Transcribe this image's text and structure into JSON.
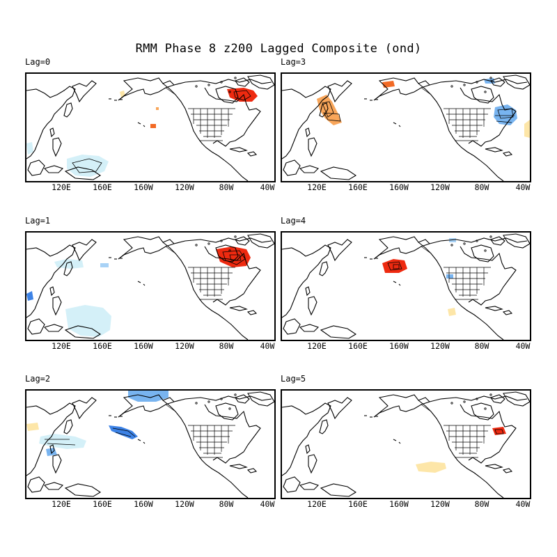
{
  "figure": {
    "title": "RMM Phase 8 z200 Lagged Composite (ond)",
    "x_tick_labels": [
      "120E",
      "160E",
      "160W",
      "120W",
      "80W",
      "40W"
    ],
    "colors": {
      "strong_positive": "#ee2a10",
      "moderate_positive": "#f26a25",
      "weak_positive": "#f9a65a",
      "faint_positive": "#fde6a8",
      "strong_negative": "#3c82e6",
      "moderate_negative": "#78b4f0",
      "weak_negative": "#a8d2f6",
      "faint_negative": "#d4f0f8",
      "coast": "#000000",
      "contour": "#000000"
    }
  },
  "panels": [
    {
      "label": "Lag=0",
      "anomalies": [
        {
          "sign": "positive",
          "intensity": "strong",
          "region": "Hudson Bay / Quebec"
        },
        {
          "sign": "positive",
          "intensity": "moderate",
          "region": "Central North Pacific (small)"
        },
        {
          "sign": "positive",
          "intensity": "faint",
          "region": "Bering Sea (small)"
        },
        {
          "sign": "negative",
          "intensity": "faint",
          "region": "Western tropical Pacific"
        },
        {
          "sign": "negative",
          "intensity": "faint",
          "region": "Philippines"
        }
      ]
    },
    {
      "label": "Lag=3",
      "anomalies": [
        {
          "sign": "positive",
          "intensity": "weak",
          "region": "Sea of Okhotsk / NE Asia"
        },
        {
          "sign": "positive",
          "intensity": "moderate",
          "region": "Alaska north coast (small)"
        },
        {
          "sign": "negative",
          "intensity": "strong",
          "region": "Canadian Arctic (small)"
        },
        {
          "sign": "negative",
          "intensity": "strong",
          "region": "Western North Atlantic"
        },
        {
          "sign": "positive",
          "intensity": "faint",
          "region": "Central Atlantic (edge)"
        }
      ]
    },
    {
      "label": "Lag=1",
      "anomalies": [
        {
          "sign": "positive",
          "intensity": "strong",
          "region": "Hudson Bay / Quebec"
        },
        {
          "sign": "negative",
          "intensity": "faint",
          "region": "Japan"
        },
        {
          "sign": "negative",
          "intensity": "faint",
          "region": "Western tropical Pacific"
        },
        {
          "sign": "negative",
          "intensity": "moderate",
          "region": "South China Sea (small)"
        }
      ]
    },
    {
      "label": "Lag=4",
      "anomalies": [
        {
          "sign": "positive",
          "intensity": "strong",
          "region": "Gulf of Alaska"
        },
        {
          "sign": "negative",
          "intensity": "moderate",
          "region": "Great Lakes (small)"
        },
        {
          "sign": "positive",
          "intensity": "faint",
          "region": "Mexico (small)"
        }
      ]
    },
    {
      "label": "Lag=2",
      "anomalies": [
        {
          "sign": "negative",
          "intensity": "moderate",
          "region": "Beaufort Sea / Alaska north"
        },
        {
          "sign": "negative",
          "intensity": "strong",
          "region": "Kuril Islands / North Pacific"
        },
        {
          "sign": "negative",
          "intensity": "faint",
          "region": "Japan / East Asia"
        },
        {
          "sign": "positive",
          "intensity": "faint",
          "region": "Northeast China"
        }
      ]
    },
    {
      "label": "Lag=5",
      "anomalies": [
        {
          "sign": "positive",
          "intensity": "strong",
          "region": "Canadian Maritimes"
        },
        {
          "sign": "positive",
          "intensity": "faint",
          "region": "Eastern tropical Pacific"
        }
      ]
    }
  ]
}
